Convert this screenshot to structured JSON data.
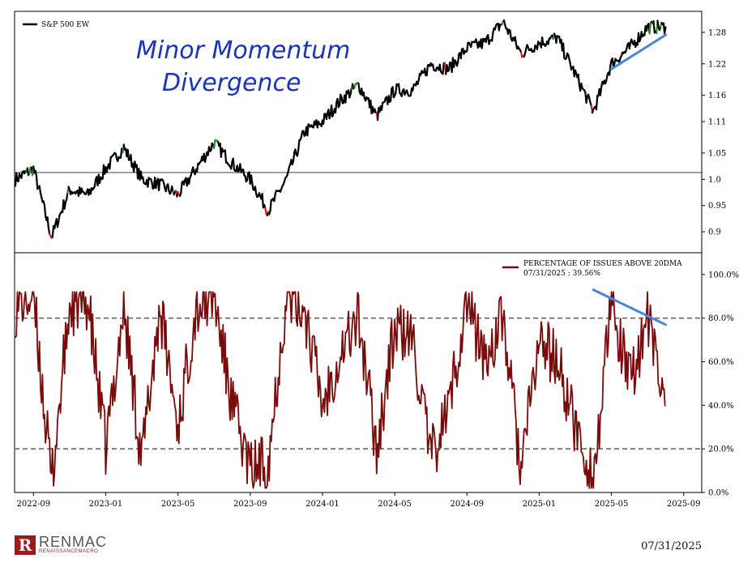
{
  "chart_data": [
    {
      "type": "line",
      "title": "",
      "legend": "S&P 500 EW",
      "legend_position": "top-left",
      "annotation": "Minor Momentum Divergence",
      "reference_line": 1.0,
      "ylim": [
        0.86,
        1.32
      ],
      "yticks": [
        "0.9",
        "0.95",
        "1.0",
        "1.05",
        "1.11",
        "1.16",
        "1.22",
        "1.28"
      ],
      "ytick_values": [
        0.9,
        0.95,
        1.0,
        1.05,
        1.11,
        1.16,
        1.22,
        1.28
      ],
      "x": [
        "2022-08",
        "2022-09",
        "2022-10",
        "2022-11",
        "2022-12",
        "2023-01",
        "2023-02",
        "2023-03",
        "2023-04",
        "2023-05",
        "2023-06",
        "2023-07",
        "2023-08",
        "2023-09",
        "2023-10",
        "2023-11",
        "2023-12",
        "2024-01",
        "2024-02",
        "2024-03",
        "2024-04",
        "2024-05",
        "2024-06",
        "2024-07",
        "2024-08",
        "2024-09",
        "2024-10",
        "2024-11",
        "2024-12",
        "2025-01",
        "2025-02",
        "2025-03",
        "2025-04",
        "2025-05",
        "2025-06",
        "2025-07",
        "2025-08"
      ],
      "values": [
        1.0,
        1.02,
        0.89,
        0.98,
        0.97,
        1.02,
        1.06,
        1.0,
        0.99,
        0.97,
        1.02,
        1.07,
        1.03,
        1.0,
        0.94,
        1.0,
        1.09,
        1.11,
        1.15,
        1.18,
        1.12,
        1.17,
        1.17,
        1.22,
        1.21,
        1.25,
        1.26,
        1.3,
        1.24,
        1.26,
        1.27,
        1.2,
        1.13,
        1.22,
        1.25,
        1.29,
        1.29
      ],
      "divergence_trendline": {
        "from": [
          "2025-05",
          1.21
        ],
        "to": [
          "2025-08",
          1.275
        ]
      },
      "colors": {
        "line": "#000000",
        "overbought": "#2e8b2e",
        "oversold": "#e01b1b",
        "trend": "#4a86d8",
        "annotation": "#1a35b8"
      }
    },
    {
      "type": "line",
      "legend": "PERCENTAGE OF ISSUES ABOVE 20DMA",
      "legend_sub": "07/31/2025 : 39.56%",
      "legend_position": "top-right",
      "ylim": [
        0,
        110
      ],
      "yticks": [
        "0.0%",
        "20.0%",
        "40.0%",
        "60.0%",
        "80.0%",
        "100.0%"
      ],
      "ytick_values": [
        0,
        20,
        40,
        60,
        80,
        100
      ],
      "reference_lines": [
        20,
        80
      ],
      "xticks": [
        "2022-09",
        "2023-01",
        "2023-05",
        "2023-09",
        "2024-01",
        "2024-05",
        "2024-09",
        "2025-01",
        "2025-05",
        "2025-09"
      ],
      "x": [
        "2022-08",
        "2022-09",
        "2022-10",
        "2022-11",
        "2022-12",
        "2023-01",
        "2023-02",
        "2023-03",
        "2023-04",
        "2023-05",
        "2023-06",
        "2023-07",
        "2023-08",
        "2023-09",
        "2023-10",
        "2023-11",
        "2023-12",
        "2024-01",
        "2024-02",
        "2024-03",
        "2024-04",
        "2024-05",
        "2024-06",
        "2024-07",
        "2024-08",
        "2024-09",
        "2024-10",
        "2024-11",
        "2024-12",
        "2025-01",
        "2025-02",
        "2025-03",
        "2025-04",
        "2025-05",
        "2025-06",
        "2025-07",
        "2025-07-31"
      ],
      "values": [
        85,
        90,
        5,
        85,
        88,
        20,
        85,
        15,
        85,
        30,
        85,
        90,
        40,
        10,
        15,
        90,
        85,
        40,
        65,
        80,
        20,
        75,
        70,
        15,
        40,
        88,
        60,
        80,
        10,
        70,
        60,
        30,
        5,
        85,
        50,
        80,
        39.56
      ],
      "divergence_trendline": {
        "from": [
          "2025-04",
          93
        ],
        "to": [
          "2025-08",
          77
        ]
      },
      "colors": {
        "line": "#7a0b0b",
        "reference": "#808080",
        "trend": "#4a86d8"
      }
    }
  ],
  "footer": {
    "brand": "RENMAC",
    "brand_sub": "RENAISSANCEMACRO",
    "logo_letter": "R",
    "date": "07/31/2025"
  }
}
